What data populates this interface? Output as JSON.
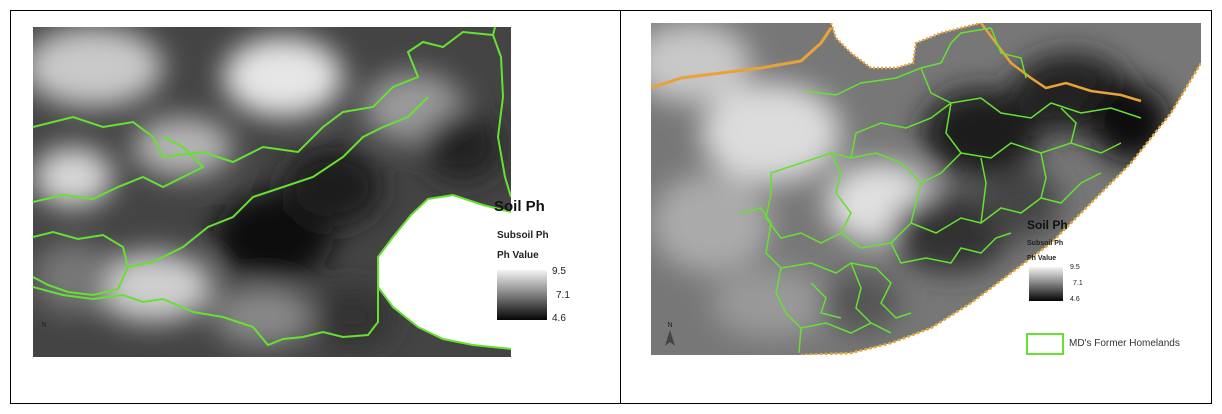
{
  "left_map": {
    "legend_title": "Soil Ph",
    "subtitle": "Subsoil Ph",
    "value_label": "Ph Value",
    "ticks": [
      "9.5",
      "7.1",
      "4.6"
    ],
    "north_label": "N"
  },
  "right_map": {
    "legend_title": "Soil Ph",
    "subtitle": "Subsoil Ph",
    "value_label": "Ph Value",
    "ticks": [
      "9.5",
      "7.1",
      "4.6"
    ],
    "north_label": "N",
    "boundary_legend": "MD's Former Homelands"
  },
  "colors": {
    "boundary": "#66e033",
    "province_border": "#e8a23a",
    "coastline": "#e0a83a"
  }
}
